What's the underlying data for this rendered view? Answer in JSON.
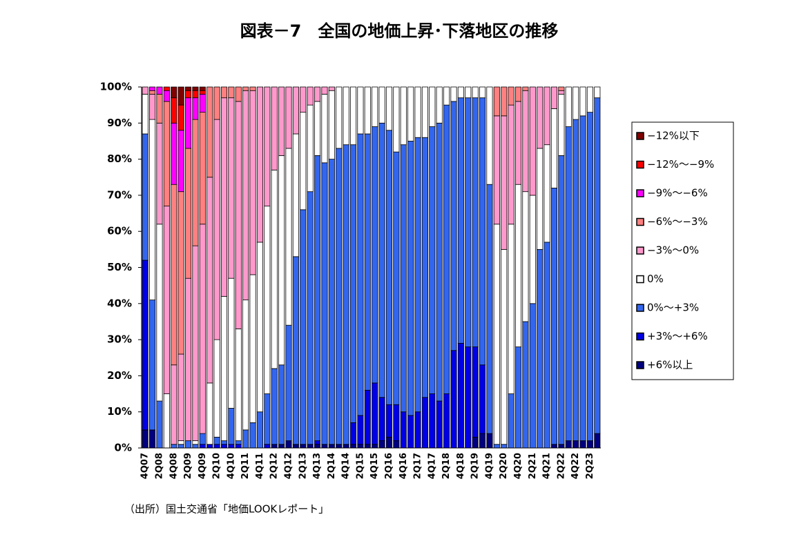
{
  "chart_data": {
    "type": "stacked_bar",
    "title": "図表－7　全国の地価上昇･下落地区の推移",
    "source": "（出所）国土交通省「地価LOOKレポート」",
    "categories": [
      "4Q07",
      null,
      "2Q08",
      null,
      "4Q08",
      null,
      "2Q09",
      null,
      "4Q09",
      null,
      "2Q10",
      null,
      "4Q10",
      null,
      "2Q11",
      null,
      "4Q11",
      null,
      "2Q12",
      null,
      "4Q12",
      null,
      "2Q13",
      null,
      "4Q13",
      null,
      "2Q14",
      null,
      "4Q14",
      null,
      "2Q15",
      null,
      "4Q15",
      null,
      "2Q16",
      null,
      "4Q16",
      null,
      "2Q17",
      null,
      "4Q17",
      null,
      "2Q18",
      null,
      "4Q18",
      null,
      "2Q19",
      null,
      "4Q19",
      null,
      "2Q20",
      null,
      "4Q20",
      null,
      "2Q21",
      null,
      "4Q21",
      null,
      "2Q22",
      null,
      "4Q22",
      null,
      "2Q23",
      null
    ],
    "series": [
      {
        "name": "−12%以下",
        "color": "#800000",
        "values": [
          0,
          0,
          0,
          0,
          3,
          5,
          1,
          1,
          1,
          0,
          0,
          0,
          0,
          0,
          0,
          0,
          0,
          0,
          0,
          0,
          0,
          0,
          0,
          0,
          0,
          0,
          0,
          0,
          0,
          0,
          0,
          0,
          0,
          0,
          0,
          0,
          0,
          0,
          0,
          0,
          0,
          0,
          0,
          0,
          0,
          0,
          0,
          0,
          0,
          0,
          0,
          0,
          0,
          0,
          0,
          0,
          0,
          0,
          0,
          0,
          0,
          0,
          0,
          0
        ]
      },
      {
        "name": "−12%～−9%",
        "color": "#ff0000",
        "values": [
          0,
          0,
          0,
          1,
          7,
          7,
          2,
          2,
          1,
          0,
          0,
          0,
          0,
          0,
          0,
          0,
          0,
          0,
          0,
          0,
          0,
          0,
          0,
          0,
          0,
          0,
          0,
          0,
          0,
          0,
          0,
          0,
          0,
          0,
          0,
          0,
          0,
          0,
          0,
          0,
          0,
          0,
          0,
          0,
          0,
          0,
          0,
          0,
          0,
          0,
          0,
          0,
          0,
          0,
          0,
          0,
          0,
          0,
          0,
          0,
          0,
          0,
          0,
          0
        ]
      },
      {
        "name": "−9%～−6%",
        "color": "#ff00ff",
        "values": [
          0,
          1,
          2,
          3,
          17,
          17,
          14,
          6,
          5,
          0,
          0,
          0,
          0,
          0,
          0,
          0,
          0,
          0,
          0,
          0,
          0,
          0,
          0,
          0,
          0,
          0,
          0,
          0,
          0,
          0,
          0,
          0,
          0,
          0,
          0,
          0,
          0,
          0,
          0,
          0,
          0,
          0,
          0,
          0,
          0,
          0,
          0,
          0,
          0,
          0,
          0,
          0,
          0,
          0,
          0,
          0,
          0,
          0,
          0,
          0,
          0,
          0,
          0,
          0
        ]
      },
      {
        "name": "−6%～−3%",
        "color": "#ff8080",
        "values": [
          0,
          1,
          8,
          29,
          50,
          45,
          36,
          35,
          31,
          25,
          9,
          3,
          3,
          4,
          1,
          1,
          0,
          0,
          0,
          0,
          0,
          0,
          0,
          0,
          0,
          0,
          0,
          0,
          0,
          0,
          0,
          0,
          0,
          0,
          0,
          0,
          0,
          0,
          0,
          0,
          0,
          0,
          0,
          0,
          0,
          0,
          0,
          0,
          0,
          8,
          8,
          5,
          4,
          1,
          0,
          0,
          0,
          0,
          1,
          0,
          0,
          0,
          0,
          0
        ]
      },
      {
        "name": "−3%～0%",
        "color": "#ff99cc",
        "values": [
          2,
          7,
          28,
          52,
          22,
          24,
          45,
          54,
          58,
          57,
          61,
          55,
          50,
          63,
          58,
          51,
          43,
          33,
          23,
          19,
          17,
          13,
          7,
          5,
          4,
          2,
          1,
          0,
          0,
          0,
          0,
          0,
          0,
          0,
          0,
          0,
          0,
          0,
          0,
          0,
          0,
          0,
          0,
          0,
          0,
          0,
          0,
          0,
          0,
          30,
          37,
          33,
          23,
          28,
          30,
          17,
          16,
          6,
          1,
          0,
          0,
          0,
          0,
          0
        ]
      },
      {
        "name": "0%",
        "color": "#ffffff",
        "values": [
          11,
          50,
          49,
          15,
          0,
          1,
          0,
          1,
          0,
          17,
          27,
          40,
          36,
          31,
          36,
          41,
          47,
          52,
          55,
          58,
          49,
          34,
          27,
          24,
          15,
          19,
          19,
          17,
          16,
          16,
          13,
          13,
          11,
          10,
          12,
          18,
          16,
          15,
          14,
          14,
          11,
          10,
          5,
          4,
          3,
          3,
          3,
          3,
          27,
          61,
          54,
          47,
          45,
          36,
          30,
          28,
          27,
          22,
          17,
          11,
          9,
          8,
          7,
          3
        ]
      },
      {
        "name": "0%～+3%",
        "color": "#3366ee",
        "values": [
          35,
          36,
          13,
          0,
          1,
          1,
          2,
          1,
          3,
          0,
          2,
          1,
          10,
          1,
          5,
          7,
          10,
          14,
          21,
          22,
          32,
          52,
          65,
          70,
          79,
          78,
          79,
          82,
          83,
          77,
          78,
          71,
          71,
          76,
          76,
          70,
          74,
          76,
          76,
          72,
          74,
          77,
          80,
          69,
          68,
          69,
          69,
          74,
          69,
          1,
          1,
          15,
          28,
          35,
          40,
          55,
          57,
          71,
          80,
          87,
          89,
          90,
          91,
          93
        ]
      },
      {
        "name": "+3%～+6%",
        "color": "#0000e6",
        "values": [
          47,
          0,
          0,
          0,
          0,
          0,
          0,
          0,
          1,
          1,
          1,
          1,
          1,
          1,
          0,
          0,
          0,
          1,
          0,
          0,
          0,
          0,
          0,
          0,
          1,
          0,
          0,
          0,
          0,
          6,
          8,
          15,
          17,
          12,
          9,
          10,
          10,
          9,
          10,
          14,
          15,
          13,
          15,
          27,
          29,
          28,
          25,
          19,
          0,
          0,
          0,
          0,
          0,
          0,
          0,
          0,
          0,
          0,
          0,
          0,
          0,
          0,
          0,
          0
        ]
      },
      {
        "name": "+6%以上",
        "color": "#000080",
        "values": [
          5,
          5,
          0,
          0,
          0,
          0,
          0,
          0,
          0,
          0,
          0,
          0,
          0,
          0,
          0,
          0,
          0,
          0,
          1,
          1,
          2,
          1,
          1,
          1,
          1,
          1,
          1,
          1,
          1,
          1,
          1,
          1,
          1,
          2,
          3,
          2,
          0,
          0,
          0,
          0,
          0,
          0,
          0,
          0,
          0,
          0,
          3,
          4,
          4,
          0,
          0,
          0,
          0,
          0,
          0,
          0,
          0,
          1,
          1,
          2,
          2,
          2,
          2,
          4
        ]
      }
    ],
    "ylim": [
      0,
      100
    ],
    "yticks": [
      {
        "value": 0,
        "label": "0%"
      },
      {
        "value": 10,
        "label": "10%"
      },
      {
        "value": 20,
        "label": "20%"
      },
      {
        "value": 30,
        "label": "30%"
      },
      {
        "value": 40,
        "label": "40%"
      },
      {
        "value": 50,
        "label": "50%"
      },
      {
        "value": 60,
        "label": "60%"
      },
      {
        "value": 70,
        "label": "70%"
      },
      {
        "value": 80,
        "label": "80%"
      },
      {
        "value": 90,
        "label": "90%"
      },
      {
        "value": 100,
        "label": "100%"
      }
    ],
    "grid": false,
    "legend": "right"
  }
}
